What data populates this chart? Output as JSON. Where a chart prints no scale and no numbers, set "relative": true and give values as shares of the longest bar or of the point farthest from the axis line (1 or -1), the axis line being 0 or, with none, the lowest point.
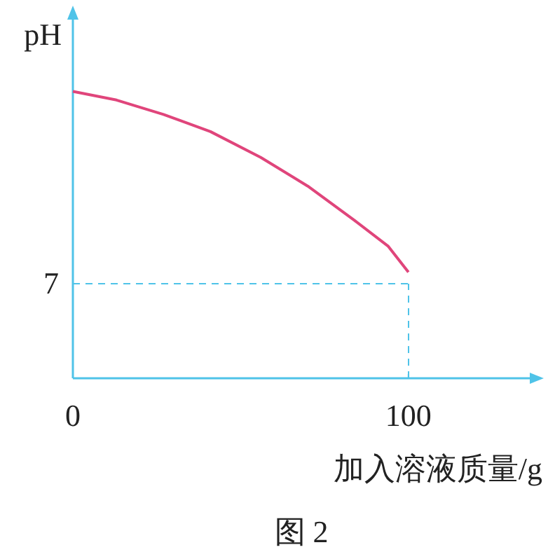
{
  "chart_data": {
    "type": "line",
    "relative": true,
    "ylabel": "pH",
    "xlabel": "加入溶液质量/g",
    "annotations": [
      {
        "text": "7",
        "x": 0,
        "y": 0.33
      },
      "图 2"
    ],
    "x": [
      0,
      13,
      27,
      41,
      56,
      70,
      84,
      94,
      100
    ],
    "series": [
      {
        "color": "#e0457b",
        "values": [
          1,
          0.97,
          0.92,
          0.86,
          0.77,
          0.67,
          0.55,
          0.46,
          0.37
        ]
      }
    ],
    "xlim": [
      0,
      137
    ],
    "xticks": [
      0,
      100
    ],
    "ref_lines": [
      {
        "axis": "y",
        "value": 0.33,
        "color": "#4fc3e8",
        "line_style": "dashed"
      },
      {
        "axis": "x",
        "value": 100,
        "color": "#4fc3e8",
        "line_style": "dashed"
      }
    ],
    "grid": false,
    "marker": "none",
    "line_style": "solid"
  }
}
